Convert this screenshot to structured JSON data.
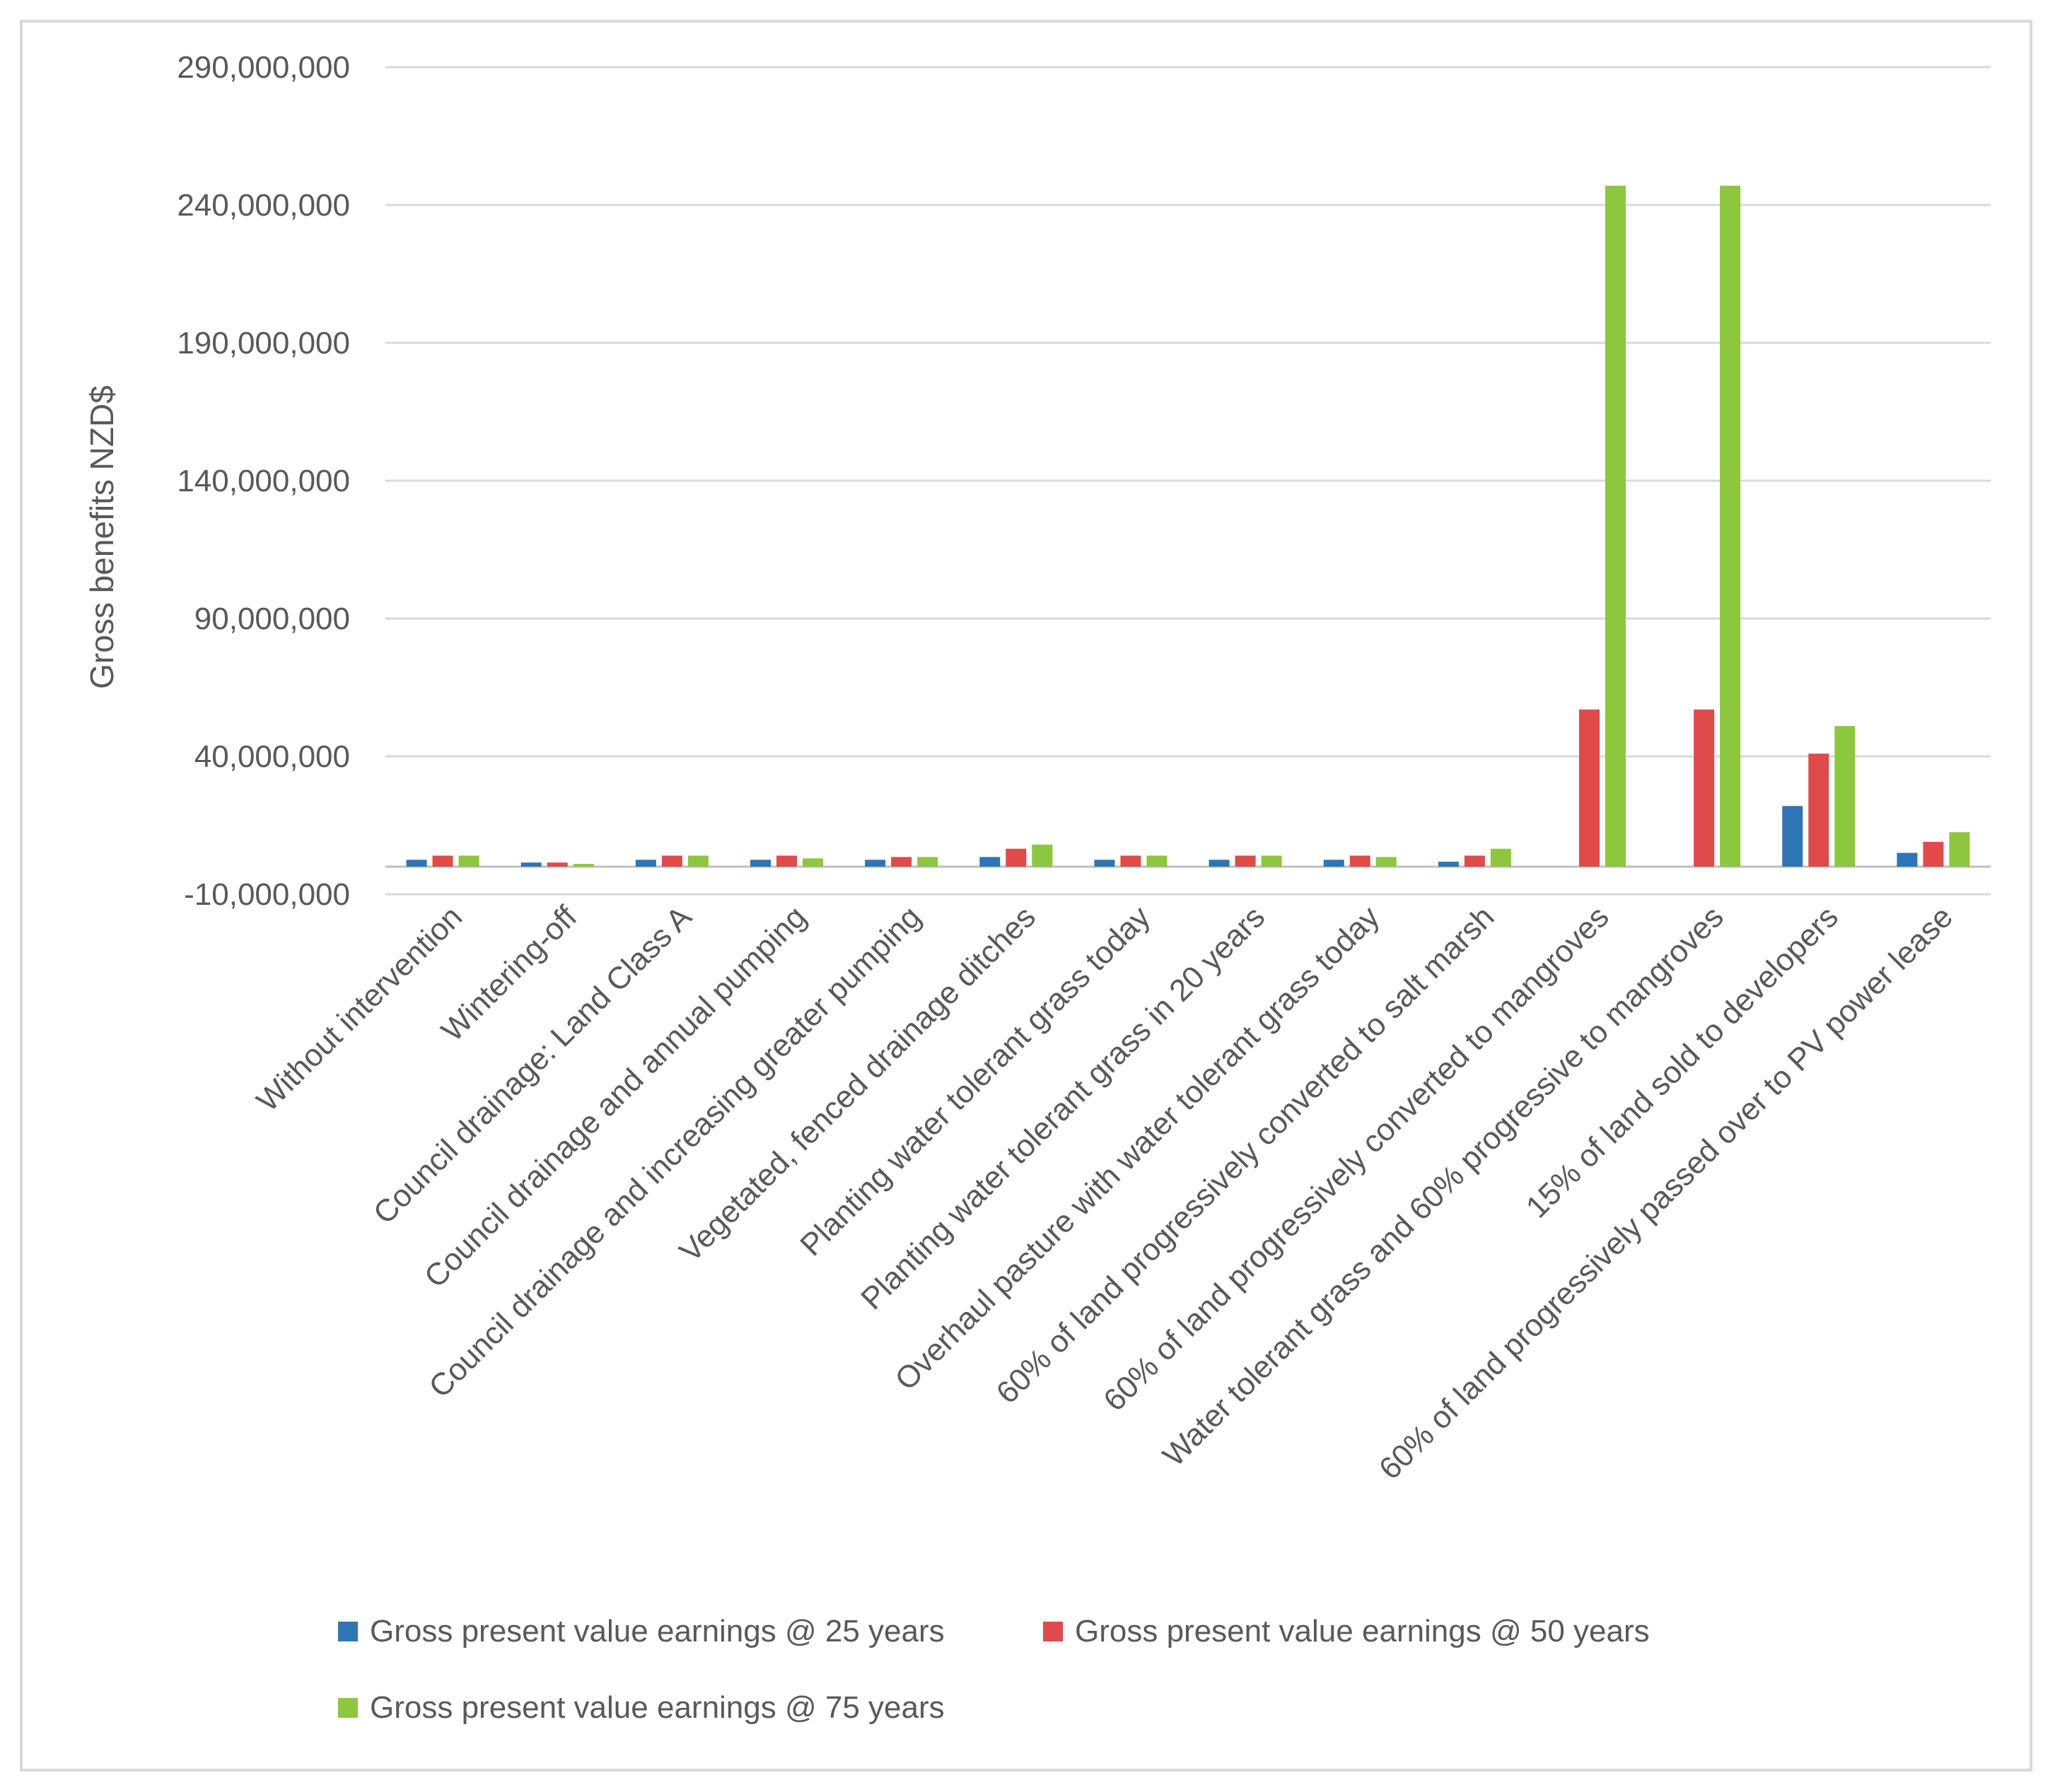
{
  "chart_data": {
    "type": "bar",
    "title": "",
    "xlabel": "",
    "ylabel": "Gross benefits NZD$",
    "ylim": [
      -10000000,
      290000000
    ],
    "yticks": [
      -10000000,
      40000000,
      90000000,
      140000000,
      190000000,
      240000000,
      290000000
    ],
    "ytick_labels": [
      "-10,000,000",
      "40,000,000",
      "90,000,000",
      "140,000,000",
      "190,000,000",
      "240,000,000",
      "290,000,000"
    ],
    "grid": true,
    "legend_position": "bottom",
    "categories": [
      "Without intervention",
      "Wintering-off",
      "Council drainage: Land Class A",
      "Council drainage and annual pumping",
      "Council drainage and increasing greater pumping",
      "Vegetated, fenced  drainage ditches",
      "Planting water tolerant grass today",
      "Planting water tolerant grass in 20 years",
      "Overhaul pasture with water tolerant grass today",
      "60% of land progressively converted to salt marsh",
      "60% of land progressively converted to mangroves",
      "Water tolerant grass and 60% progressive to mangroves",
      "15% of land sold to developers",
      "60% of land progressively passed over to PV power lease"
    ],
    "series": [
      {
        "name": "Gross present value earnings @ 25 years",
        "color": "#2e75b6",
        "values": [
          2500000,
          1500000,
          2500000,
          2500000,
          2500000,
          3500000,
          2500000,
          2500000,
          2500000,
          1800000,
          0,
          0,
          22000000,
          5000000
        ]
      },
      {
        "name": "Gross present value earnings @ 50 years",
        "color": "#e04a4a",
        "values": [
          4000000,
          1500000,
          4000000,
          4000000,
          3500000,
          6500000,
          4000000,
          4000000,
          4000000,
          4000000,
          57000000,
          57000000,
          41000000,
          9000000
        ]
      },
      {
        "name": "Gross present value earnings @ 75 years",
        "color": "#8dc63f",
        "values": [
          4000000,
          1000000,
          4000000,
          3000000,
          3500000,
          8000000,
          4000000,
          4000000,
          3500000,
          6500000,
          247000000,
          247000000,
          51000000,
          12500000
        ]
      }
    ]
  }
}
